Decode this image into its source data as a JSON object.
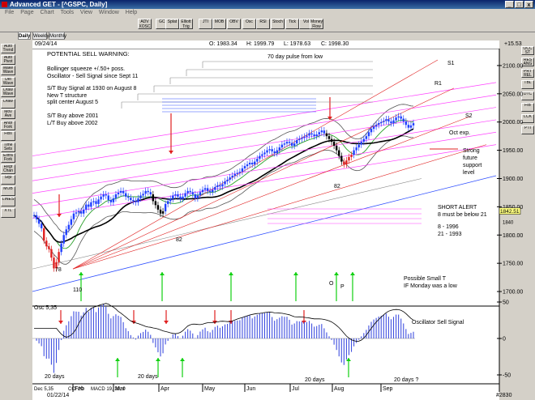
{
  "window": {
    "title": "Advanced GET - [^GSPC, Daily]",
    "buttons": [
      "_",
      "□",
      "x"
    ]
  },
  "menu": {
    "items": [
      "File",
      "Page",
      "Chart",
      "Tools",
      "View",
      "Window",
      "Help"
    ]
  },
  "toolbar": {
    "buttons": [
      "ADV XOSC",
      "GCI",
      "Splat",
      "Elliott Trig",
      "JTI",
      "MOB",
      "OBV",
      "Osc",
      "RSI",
      "Stoch",
      "Tick",
      "Vol",
      "Money Flow"
    ]
  },
  "tabs": [
    "Daily",
    "Weekly",
    "Monthly"
  ],
  "left_toolbar": [
    "Auto Trend",
    "Auto Pivot",
    "Make Wave",
    "Del Wave",
    "Draw Wave",
    "Draw",
    "Mov Ave",
    "Andr Fork",
    "Fibs",
    "Time Sets",
    "Extra Fork",
    "Regr Chan",
    "Sq9",
    "MOB",
    "LINES",
    "XTL"
  ],
  "right_toolbar": [
    "OCC ST",
    "RES ANG",
    "PRT REL",
    "TBL",
    "DTC",
    "FIB",
    "LCK",
    "PTI"
  ],
  "info": {
    "date": "09/24/14",
    "open": "O: 1983.34",
    "high": "H: 1999.79",
    "low": "L: 1978.63",
    "close": "C: 1998.30",
    "change": "+15.53"
  },
  "annotations": {
    "title": "POTENTIAL SELL WARNING:",
    "bollinger": "Bollinger squeeze +/.50+ poss.",
    "oscillator": "Oscillator - Sell Signal since Sept 11",
    "st_buy": "S/T Buy Signal at 1930 on August 8",
    "new_t": "New T structure",
    "split": "split center August 5",
    "st_above": "S/T Buy above 2001",
    "lt_above": "L/T Buy above 2002",
    "pulse": "70 day pulse from low",
    "s1": "S1",
    "r1": "R1",
    "s2": "S2",
    "oct": "Oct exp.",
    "strong1": "Strong",
    "strong2": "future",
    "strong3": "support",
    "strong4": "level",
    "short_alert": "SHORT ALERT",
    "short_below": "8 must be below 21",
    "n8": "8   - 1996",
    "n21": "21 - 1993",
    "small_t1": "Possible Small T",
    "small_t2": "IF Monday was a low",
    "w78": "78",
    "w110": "110",
    "w82a": "82",
    "w82b": "82",
    "o": "O",
    "p": "P",
    "osc_signal": "Oscillator Sell Signal",
    "d20a": "20 days",
    "d20b": "20 days",
    "d20c": "20 days",
    "d20d": "20 days ?",
    "osc_label": "Osc 5,35",
    "price_tag": "1842.51",
    "price_tag2": "1840"
  },
  "bottom_bar": {
    "dates": [
      "Dec 5,35",
      "CCI 20",
      "MACD 19, 39, 9"
    ],
    "start": "01/22/14",
    "months": [
      "Feb",
      "Mar",
      "Apr",
      "May",
      "Jun",
      "Jul",
      "Aug",
      "Sep"
    ],
    "corner": "#2830"
  },
  "chart_data": {
    "type": "candlestick",
    "symbol": "^GSPC",
    "y_ticks": [
      1700,
      1750,
      1800,
      1850,
      1900,
      1950,
      2000,
      2050,
      2100
    ],
    "y_range": [
      1680,
      2130
    ],
    "osc_ticks": [
      50,
      0,
      -50
    ],
    "months": [
      "Feb",
      "Mar",
      "Apr",
      "May",
      "Jun",
      "Jul",
      "Aug",
      "Sep"
    ],
    "closes": [
      1835,
      1828,
      1820,
      1812,
      1790,
      1780,
      1775,
      1760,
      1741,
      1752,
      1770,
      1785,
      1800,
      1810,
      1818,
      1828,
      1838,
      1840,
      1842,
      1838,
      1845,
      1854,
      1850,
      1858,
      1860,
      1855,
      1863,
      1868,
      1872,
      1870,
      1862,
      1858,
      1865,
      1872,
      1875,
      1878,
      1874,
      1868,
      1866,
      1862,
      1860,
      1858,
      1865,
      1870,
      1873,
      1878,
      1876,
      1872,
      1860,
      1853,
      1845,
      1838,
      1842,
      1855,
      1860,
      1864,
      1870,
      1872,
      1868,
      1864,
      1868,
      1874,
      1878,
      1876,
      1872,
      1865,
      1870,
      1876,
      1880,
      1883,
      1878,
      1876,
      1880,
      1885,
      1888,
      1886,
      1890,
      1895,
      1898,
      1902,
      1905,
      1908,
      1910,
      1912,
      1918,
      1922,
      1925,
      1928,
      1925,
      1930,
      1935,
      1940,
      1943,
      1946,
      1950,
      1952,
      1948,
      1945,
      1950,
      1955,
      1960,
      1962,
      1965,
      1963,
      1958,
      1962,
      1968,
      1970,
      1972,
      1974,
      1976,
      1980,
      1978,
      1975,
      1978,
      1982,
      1985,
      1980,
      1975,
      1970,
      1965,
      1958,
      1950,
      1940,
      1930,
      1925,
      1932,
      1938,
      1942,
      1950,
      1955,
      1960,
      1965,
      1970,
      1975,
      1982,
      1988,
      1992,
      1995,
      1998,
      2000,
      2002,
      2005,
      2001,
      1998,
      2003,
      2008,
      2010,
      2006,
      2001,
      1995,
      1990,
      1994,
      1998
    ]
  }
}
